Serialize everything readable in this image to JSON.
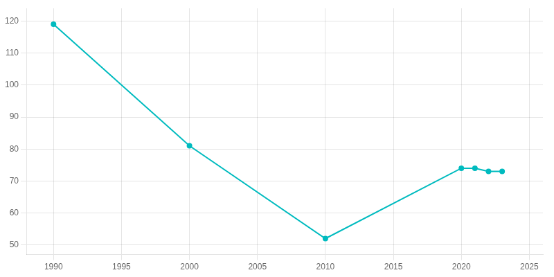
{
  "chart_data": {
    "type": "line",
    "x": [
      1990,
      2000,
      2010,
      2020,
      2021,
      2022,
      2023
    ],
    "values": [
      119,
      81,
      52,
      74,
      74,
      73,
      73
    ],
    "color": "#00BBBF",
    "marker": "circle",
    "xlim": [
      1988,
      2026
    ],
    "ylim": [
      47,
      124
    ],
    "xticks": [
      1990,
      1995,
      2000,
      2005,
      2010,
      2015,
      2020,
      2025
    ],
    "yticks": [
      50,
      60,
      70,
      80,
      90,
      100,
      110,
      120
    ],
    "grid": true
  }
}
